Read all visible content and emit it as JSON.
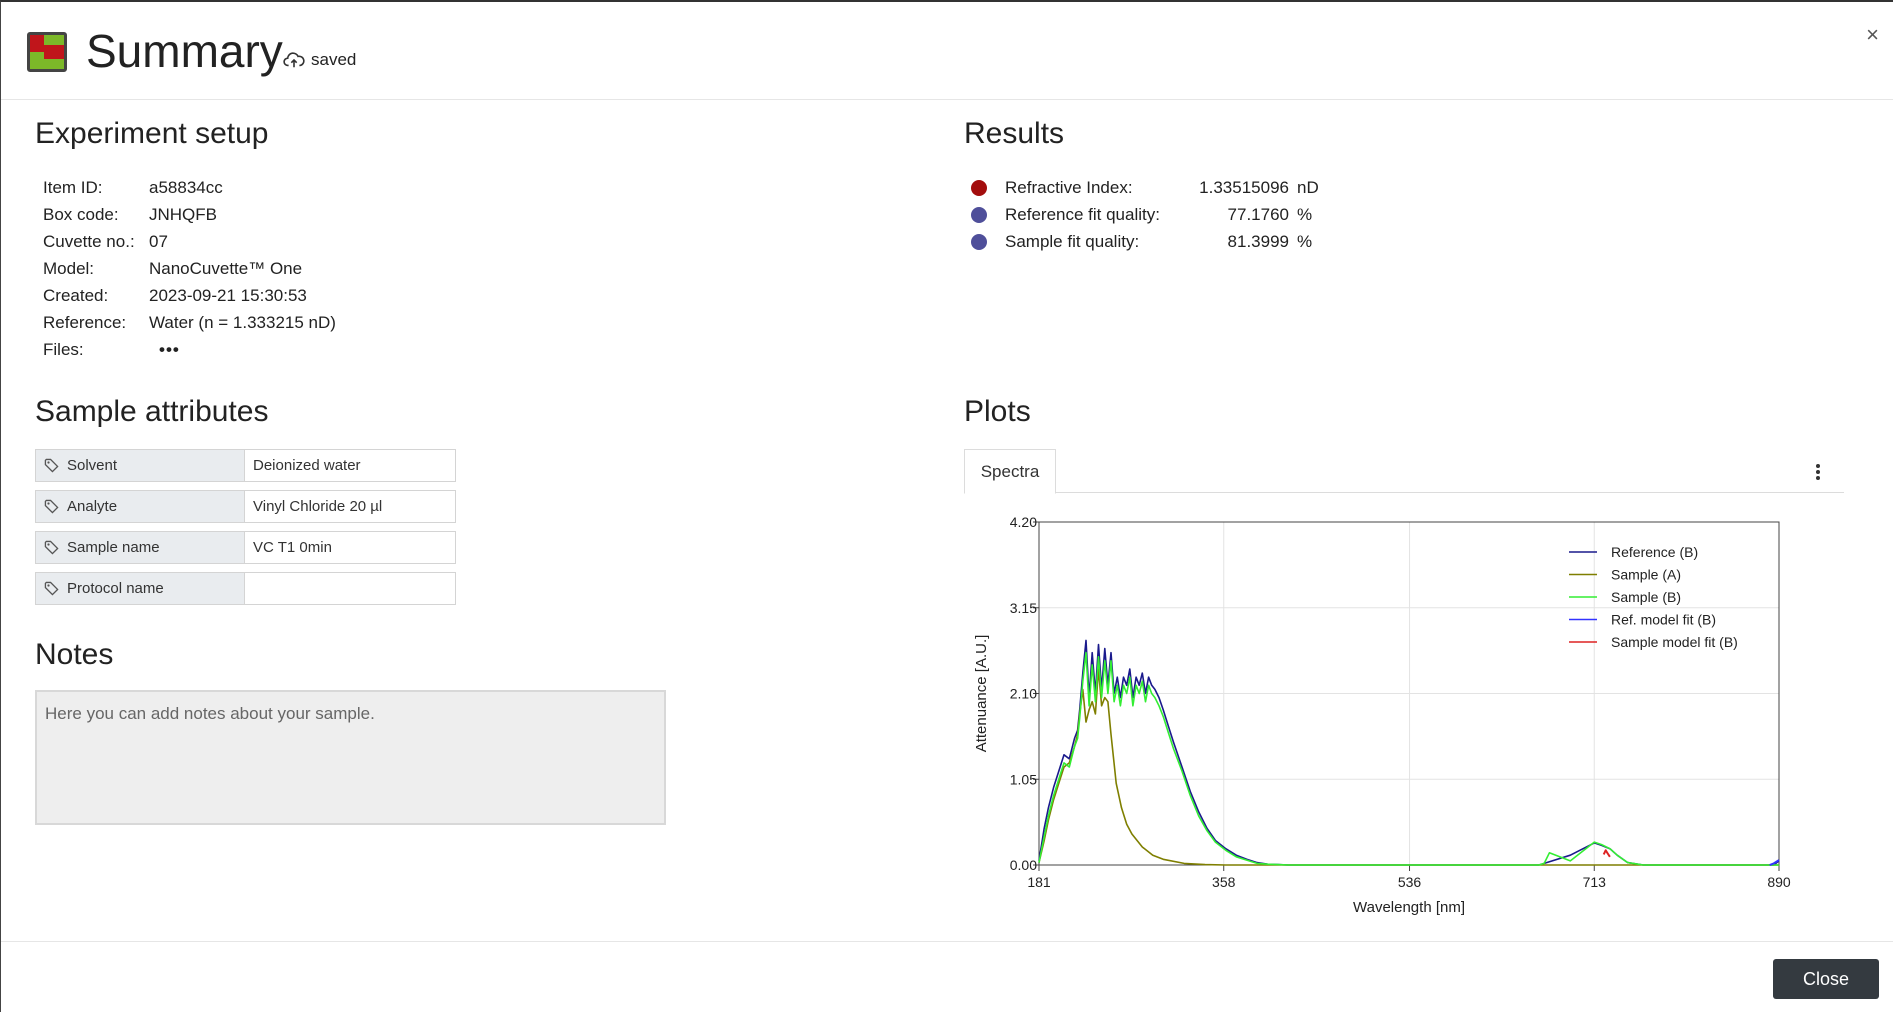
{
  "header": {
    "title": "Summary",
    "saved_label": "saved",
    "close_symbol": "×"
  },
  "experiment": {
    "heading": "Experiment setup",
    "rows": [
      {
        "key": "Item ID:",
        "value": "a58834cc"
      },
      {
        "key": "Box code:",
        "value": "JNHQFB"
      },
      {
        "key": "Cuvette no.:",
        "value": "07"
      },
      {
        "key": "Model:",
        "value": "NanoCuvette™ One"
      },
      {
        "key": "Created:",
        "value": "2023-09-21 15:30:53"
      },
      {
        "key": "Reference:",
        "value": "Water (n = 1.333215 nD)"
      },
      {
        "key": "Files:",
        "value": "•••"
      }
    ]
  },
  "results": {
    "heading": "Results",
    "rows": [
      {
        "label": "Refractive Index:",
        "value": "1.33515096",
        "unit": "nD",
        "color": "#a30d0d"
      },
      {
        "label": "Reference fit quality:",
        "value": "77.1760",
        "unit": "%",
        "color": "#4f4f9a"
      },
      {
        "label": "Sample fit quality:",
        "value": "81.3999",
        "unit": "%",
        "color": "#4f4f9a"
      }
    ]
  },
  "attributes": {
    "heading": "Sample attributes",
    "rows": [
      {
        "name": "Solvent",
        "value": "Deionized water"
      },
      {
        "name": "Analyte",
        "value": "Vinyl Chloride 20 µl"
      },
      {
        "name": "Sample name",
        "value": "VC T1 0min"
      },
      {
        "name": "Protocol name",
        "value": ""
      }
    ]
  },
  "notes": {
    "heading": "Notes",
    "placeholder": "Here you can add notes about your sample."
  },
  "plots": {
    "heading": "Plots",
    "tab": "Spectra"
  },
  "footer": {
    "close_label": "Close"
  },
  "chart_data": {
    "type": "line",
    "title": "",
    "xlabel": "Wavelength [nm]",
    "ylabel": "Attenuance [A.U.]",
    "xlim": [
      181,
      890
    ],
    "ylim": [
      0,
      4.2
    ],
    "xticks": [
      "181",
      "358",
      "536",
      "713",
      "890"
    ],
    "yticks": [
      "0.00",
      "1.05",
      "2.10",
      "3.15",
      "4.20"
    ],
    "grid": true,
    "legend": "top-right",
    "series": [
      {
        "name": "Reference (B)",
        "color": "#1a1a8c",
        "x": [
          181,
          186,
          190,
          195,
          200,
          205,
          210,
          215,
          218,
          220,
          223,
          226,
          229,
          232,
          235,
          238,
          241,
          244,
          247,
          250,
          253,
          256,
          259,
          262,
          265,
          268,
          271,
          274,
          277,
          280,
          283,
          286,
          289,
          292,
          296,
          300,
          305,
          310,
          318,
          326,
          334,
          342,
          350,
          360,
          370,
          380,
          390,
          400,
          410,
          420,
          430,
          440,
          460,
          500,
          560,
          640,
          660,
          665,
          670,
          690,
          713,
          720,
          728,
          735,
          745,
          760,
          800,
          885,
          890
        ],
        "y": [
          0.05,
          0.45,
          0.7,
          0.95,
          1.15,
          1.35,
          1.3,
          1.55,
          1.65,
          1.9,
          2.35,
          2.75,
          2.05,
          2.6,
          2.1,
          2.7,
          2.15,
          2.65,
          2.2,
          2.6,
          2.1,
          2.3,
          2.05,
          2.3,
          2.2,
          2.4,
          2.05,
          2.3,
          2.2,
          2.35,
          2.1,
          2.3,
          2.2,
          2.15,
          2.05,
          1.9,
          1.7,
          1.5,
          1.2,
          0.9,
          0.65,
          0.45,
          0.3,
          0.2,
          0.12,
          0.07,
          0.03,
          0.01,
          0.005,
          0,
          0,
          0,
          0,
          0,
          0,
          0,
          0,
          0.02,
          0.04,
          0.12,
          0.27,
          0.24,
          0.2,
          0.12,
          0.03,
          0,
          0,
          0,
          0.05
        ]
      },
      {
        "name": "Sample (A)",
        "color": "#7f7f00",
        "x": [
          181,
          186,
          190,
          195,
          200,
          205,
          210,
          215,
          218,
          220,
          223,
          226,
          229,
          232,
          235,
          238,
          241,
          244,
          247,
          250,
          255,
          260,
          265,
          270,
          280,
          290,
          300,
          320,
          340,
          360,
          380,
          890
        ],
        "y": [
          0.03,
          0.3,
          0.55,
          0.8,
          1.0,
          1.2,
          1.25,
          1.45,
          1.6,
          1.85,
          2.15,
          1.75,
          1.9,
          2.0,
          1.85,
          2.4,
          1.95,
          2.05,
          2.0,
          1.6,
          1.0,
          0.7,
          0.5,
          0.38,
          0.22,
          0.12,
          0.07,
          0.02,
          0.005,
          0,
          0,
          0
        ]
      },
      {
        "name": "Sample (B)",
        "color": "#33ee33",
        "x": [
          181,
          186,
          190,
          195,
          200,
          205,
          210,
          215,
          218,
          220,
          223,
          226,
          229,
          232,
          235,
          238,
          241,
          244,
          247,
          250,
          253,
          256,
          259,
          262,
          265,
          268,
          271,
          274,
          277,
          280,
          283,
          286,
          289,
          292,
          296,
          300,
          305,
          310,
          318,
          326,
          334,
          342,
          350,
          360,
          370,
          380,
          390,
          400,
          410,
          420,
          430,
          440,
          460,
          500,
          560,
          640,
          660,
          665,
          670,
          690,
          713,
          720,
          728,
          735,
          745,
          760,
          800,
          885,
          890
        ],
        "y": [
          0.03,
          0.35,
          0.6,
          0.85,
          1.05,
          1.25,
          1.2,
          1.45,
          1.55,
          1.8,
          2.25,
          2.6,
          1.95,
          2.45,
          2.0,
          2.55,
          2.05,
          2.5,
          2.1,
          2.5,
          2.0,
          2.2,
          1.95,
          2.2,
          2.1,
          2.3,
          1.95,
          2.2,
          2.1,
          2.25,
          2.0,
          2.2,
          2.1,
          2.05,
          1.95,
          1.82,
          1.62,
          1.42,
          1.15,
          0.85,
          0.6,
          0.42,
          0.28,
          0.18,
          0.1,
          0.06,
          0.02,
          0.01,
          0.005,
          0,
          0,
          0,
          0,
          0,
          0,
          0,
          0,
          0.02,
          0.15,
          0.05,
          0.28,
          0.25,
          0.2,
          0.12,
          0.03,
          0,
          0,
          0,
          0
        ]
      },
      {
        "name": "Ref. model fit (B)",
        "color": "#3333ff",
        "x": [
          881,
          885,
          890
        ],
        "y": [
          0,
          0.02,
          0.06
        ]
      },
      {
        "name": "Sample model fit (B)",
        "color": "#dd2222",
        "x": [
          722,
          724,
          726,
          728
        ],
        "y": [
          0.13,
          0.18,
          0.14,
          0.1
        ]
      }
    ]
  }
}
